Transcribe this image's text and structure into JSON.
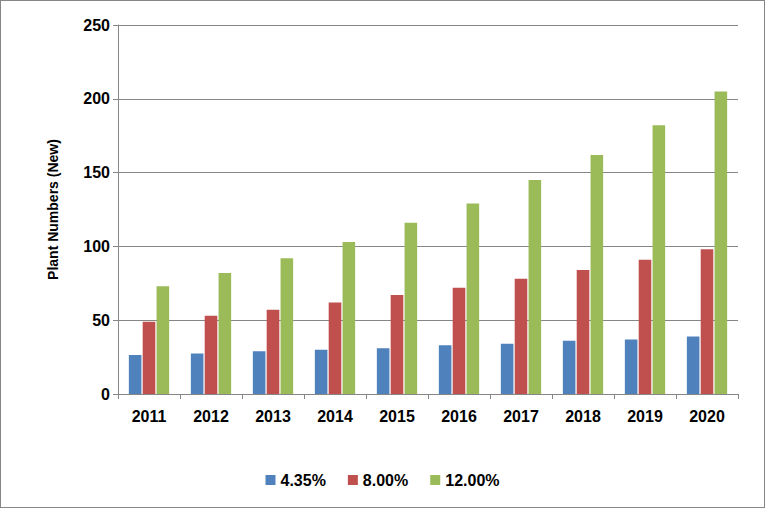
{
  "chart_data": {
    "type": "bar",
    "y_label": "Plant Numbers (New)",
    "categories": [
      "2011",
      "2012",
      "2013",
      "2014",
      "2015",
      "2016",
      "2017",
      "2018",
      "2019",
      "2020"
    ],
    "series": [
      {
        "name": "4.35%",
        "color": "#4f81bd",
        "values": [
          26.5,
          27.5,
          29,
          30,
          31,
          33,
          34,
          36,
          37,
          39
        ]
      },
      {
        "name": "8.00%",
        "color": "#c0504d",
        "values": [
          49,
          53,
          57,
          62,
          67,
          72,
          78,
          84,
          91,
          98
        ]
      },
      {
        "name": "12.00%",
        "color": "#9bbb59",
        "values": [
          73,
          82,
          92,
          103,
          116,
          129,
          145,
          162,
          182,
          205
        ]
      }
    ],
    "ylim": [
      0,
      250
    ],
    "yticks": [
      0,
      50,
      100,
      150,
      200,
      250
    ],
    "grid": true,
    "legend": "bottom"
  }
}
